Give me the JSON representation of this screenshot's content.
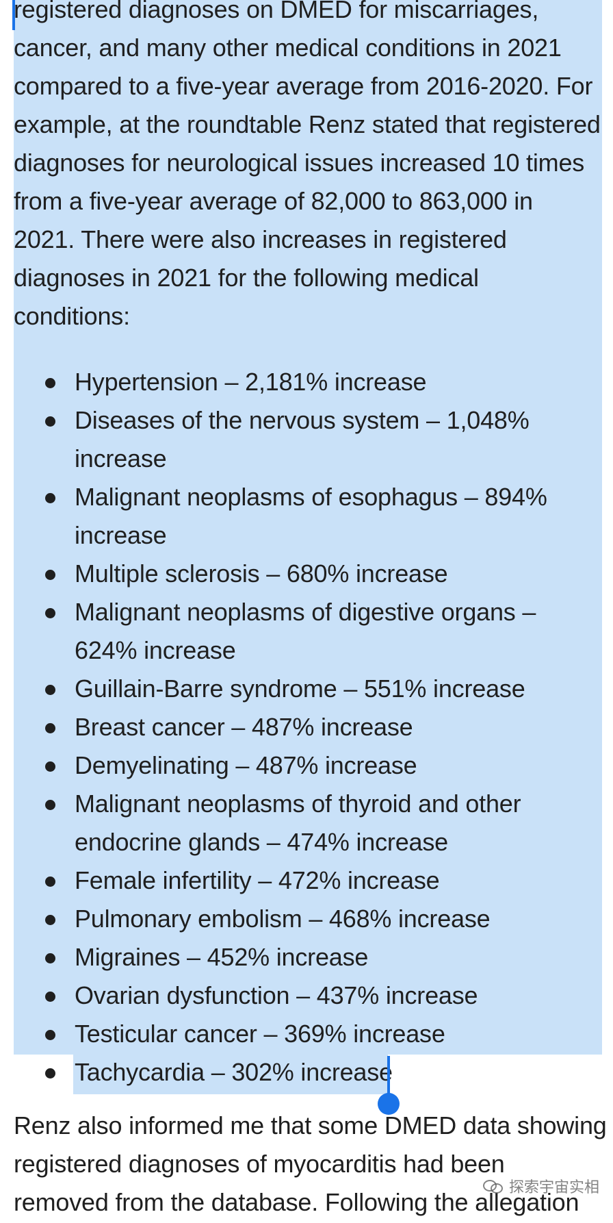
{
  "article": {
    "intro_lines": [
      "registered diagnoses on DMED for miscarriages,",
      "cancer, and many other medical conditions in 2021",
      "compared to a five-year average from 2016-2020.   For",
      "example, at the roundtable Renz stated that registered",
      "diagnoses for neurological issues increased 10 times",
      "from a five-year average of 82,000 to 863,000 in",
      "2021.   There were also increases in registered",
      "diagnoses in 2021 for the following medical",
      "conditions:"
    ],
    "conditions": [
      {
        "lines": [
          "Hypertension –  2,181% increase"
        ]
      },
      {
        "lines": [
          "Diseases of the nervous system – 1,048%",
          "increase"
        ]
      },
      {
        "lines": [
          "Malignant neoplasms of esophagus – 894%",
          "increase"
        ]
      },
      {
        "lines": [
          "Multiple sclerosis – 680% increase"
        ]
      },
      {
        "lines": [
          "Malignant neoplasms of digestive organs –",
          "624% increase"
        ]
      },
      {
        "lines": [
          "Guillain-Barre syndrome – 551% increase"
        ]
      },
      {
        "lines": [
          "Breast cancer – 487% increase"
        ]
      },
      {
        "lines": [
          "Demyelinating – 487% increase"
        ]
      },
      {
        "lines": [
          "Malignant neoplasms of thyroid and other",
          "endocrine glands – 474% increase"
        ]
      },
      {
        "lines": [
          "Female infertility – 472% increase"
        ]
      },
      {
        "lines": [
          "Pulmonary embolism – 468% increase"
        ]
      },
      {
        "lines": [
          "Migraines – 452% increase"
        ]
      },
      {
        "lines": [
          "Ovarian dysfunction – 437% increase"
        ]
      },
      {
        "lines": [
          "Testicular cancer – 369% increase"
        ]
      },
      {
        "lines": [
          "Tachycardia – 302% increase"
        ]
      }
    ],
    "after_lines": [
      "Renz also informed me that some DMED data showing",
      "registered diagnoses of myocarditis had been",
      "removed from the database.   Following the allegation"
    ]
  },
  "watermark": {
    "icon": "wechat-icon",
    "text": "探索宇宙实相"
  },
  "colors": {
    "selection": "#c9e1f8",
    "caret": "#1a73e8",
    "text": "#1f1f1f"
  }
}
